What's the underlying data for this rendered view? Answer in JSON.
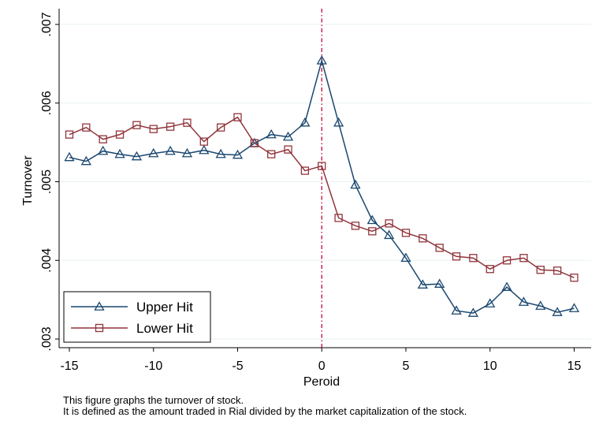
{
  "chart_data": {
    "type": "line",
    "title": "",
    "xlabel": "Peroid",
    "ylabel": "Turnover",
    "xlim": [
      -15,
      15
    ],
    "ylim": [
      0.003,
      0.007
    ],
    "x_ticks": [
      -15,
      -10,
      -5,
      0,
      5,
      10,
      15
    ],
    "x_tick_labels": [
      "-15",
      "-10",
      "-5",
      "0",
      "5",
      "10",
      "15"
    ],
    "y_ticks": [
      0.003,
      0.004,
      0.005,
      0.006,
      0.007
    ],
    "y_tick_labels": [
      ".003",
      ".004",
      ".005",
      ".006",
      ".007"
    ],
    "grid": "horizontal",
    "event_line_x": 0,
    "legend_position": "bottom-left",
    "x": [
      -15,
      -14,
      -13,
      -12,
      -11,
      -10,
      -9,
      -8,
      -7,
      -6,
      -5,
      -4,
      -3,
      -2,
      -1,
      0,
      1,
      2,
      3,
      4,
      5,
      6,
      7,
      8,
      9,
      10,
      11,
      12,
      13,
      14,
      15
    ],
    "series": [
      {
        "name": "Upper Hit",
        "marker": "triangle",
        "color": "#1a476f",
        "values": [
          0.00531,
          0.00526,
          0.00539,
          0.00535,
          0.00532,
          0.00536,
          0.00539,
          0.00536,
          0.0054,
          0.00535,
          0.00534,
          0.00549,
          0.0056,
          0.00557,
          0.00575,
          0.00654,
          0.00575,
          0.00496,
          0.00451,
          0.00432,
          0.00403,
          0.00369,
          0.0037,
          0.00336,
          0.00333,
          0.00345,
          0.00366,
          0.00347,
          0.00342,
          0.00334,
          0.00339
        ]
      },
      {
        "name": "Lower Hit",
        "marker": "square",
        "color": "#90353b",
        "values": [
          0.0056,
          0.00569,
          0.00554,
          0.0056,
          0.00572,
          0.00567,
          0.0057,
          0.00575,
          0.00551,
          0.00569,
          0.00582,
          0.00549,
          0.00535,
          0.00541,
          0.00514,
          0.0052,
          0.00454,
          0.00444,
          0.00437,
          0.00447,
          0.00435,
          0.00428,
          0.00416,
          0.00405,
          0.00403,
          0.00389,
          0.004,
          0.00403,
          0.00388,
          0.00387,
          0.00378
        ]
      }
    ]
  },
  "caption": {
    "line1": "This figure graphs the turnover of stock.",
    "line2": "It is defined as the amount traded in Rial divided by the market capitalization of the stock."
  }
}
